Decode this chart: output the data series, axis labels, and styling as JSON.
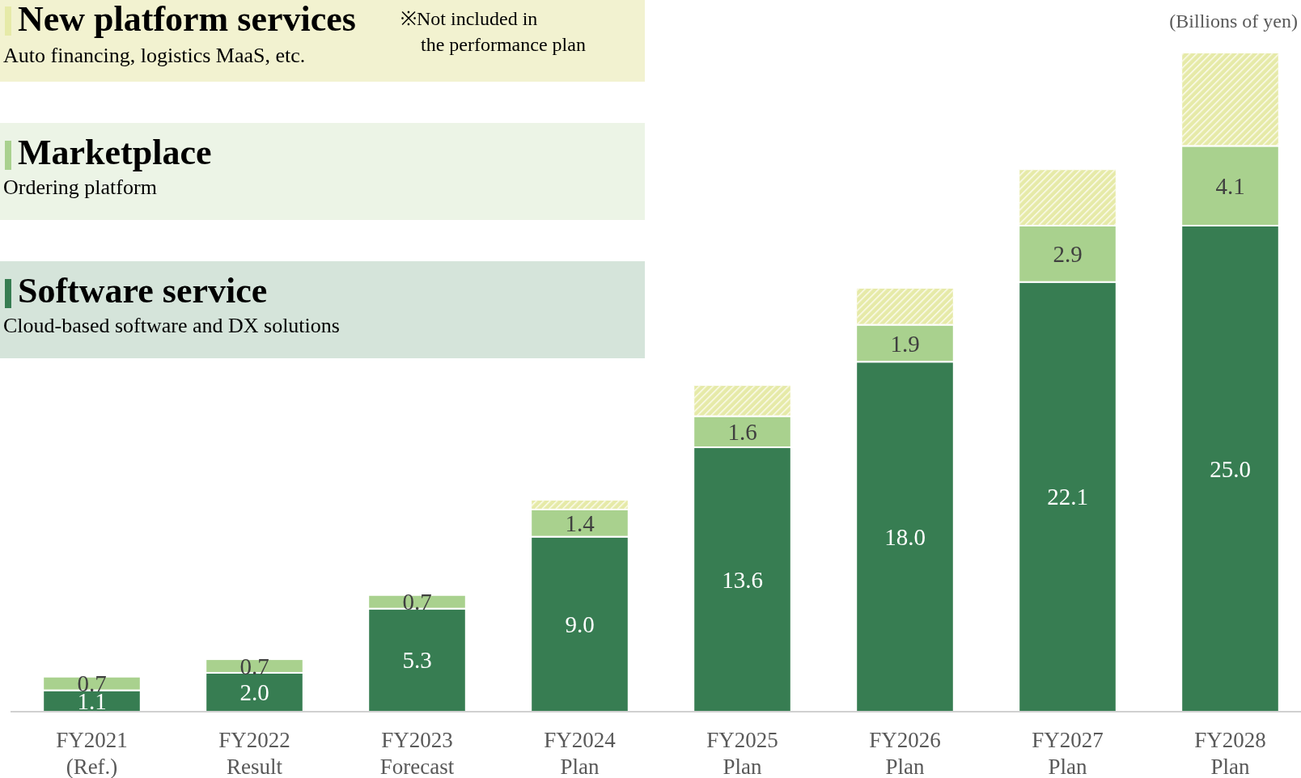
{
  "chart_data": {
    "type": "bar",
    "stacked": true,
    "ylabel": "(Billions of yen)",
    "legend": "top left",
    "categories": [
      "FY2021\n(Ref.)",
      "FY2022\nResult",
      "FY2023\nForecast",
      "FY2024\nPlan",
      "FY2025\nPlan",
      "FY2026\nPlan",
      "FY2027\nPlan",
      "FY2028\nPlan"
    ],
    "series": [
      {
        "name": "Software service",
        "color": "#377d52",
        "values": [
          1.1,
          2.0,
          5.3,
          9.0,
          13.6,
          18.0,
          22.1,
          25.0
        ],
        "value_labels": [
          "1.1",
          "2.0",
          "5.3",
          "9.0",
          "13.6",
          "18.0",
          "22.1",
          "25.0"
        ]
      },
      {
        "name": "Marketplace",
        "color": "#a9d18e",
        "values": [
          0.7,
          0.7,
          0.7,
          1.4,
          1.6,
          1.9,
          2.9,
          4.1
        ],
        "value_labels": [
          "0.7",
          "0.7",
          "0.7",
          "1.4",
          "1.6",
          "1.9",
          "2.9",
          "4.1"
        ]
      },
      {
        "name": "New platform services",
        "color": "#e6eaa8",
        "values": [
          null,
          null,
          null,
          0.5,
          1.6,
          1.9,
          2.9,
          4.8
        ]
      }
    ],
    "annotations": [
      "Cloud-based software and DX solutions",
      "Ordering platform",
      "Auto financing, logistics MaaS, etc.",
      "※Not included in the performance plan"
    ]
  }
}
